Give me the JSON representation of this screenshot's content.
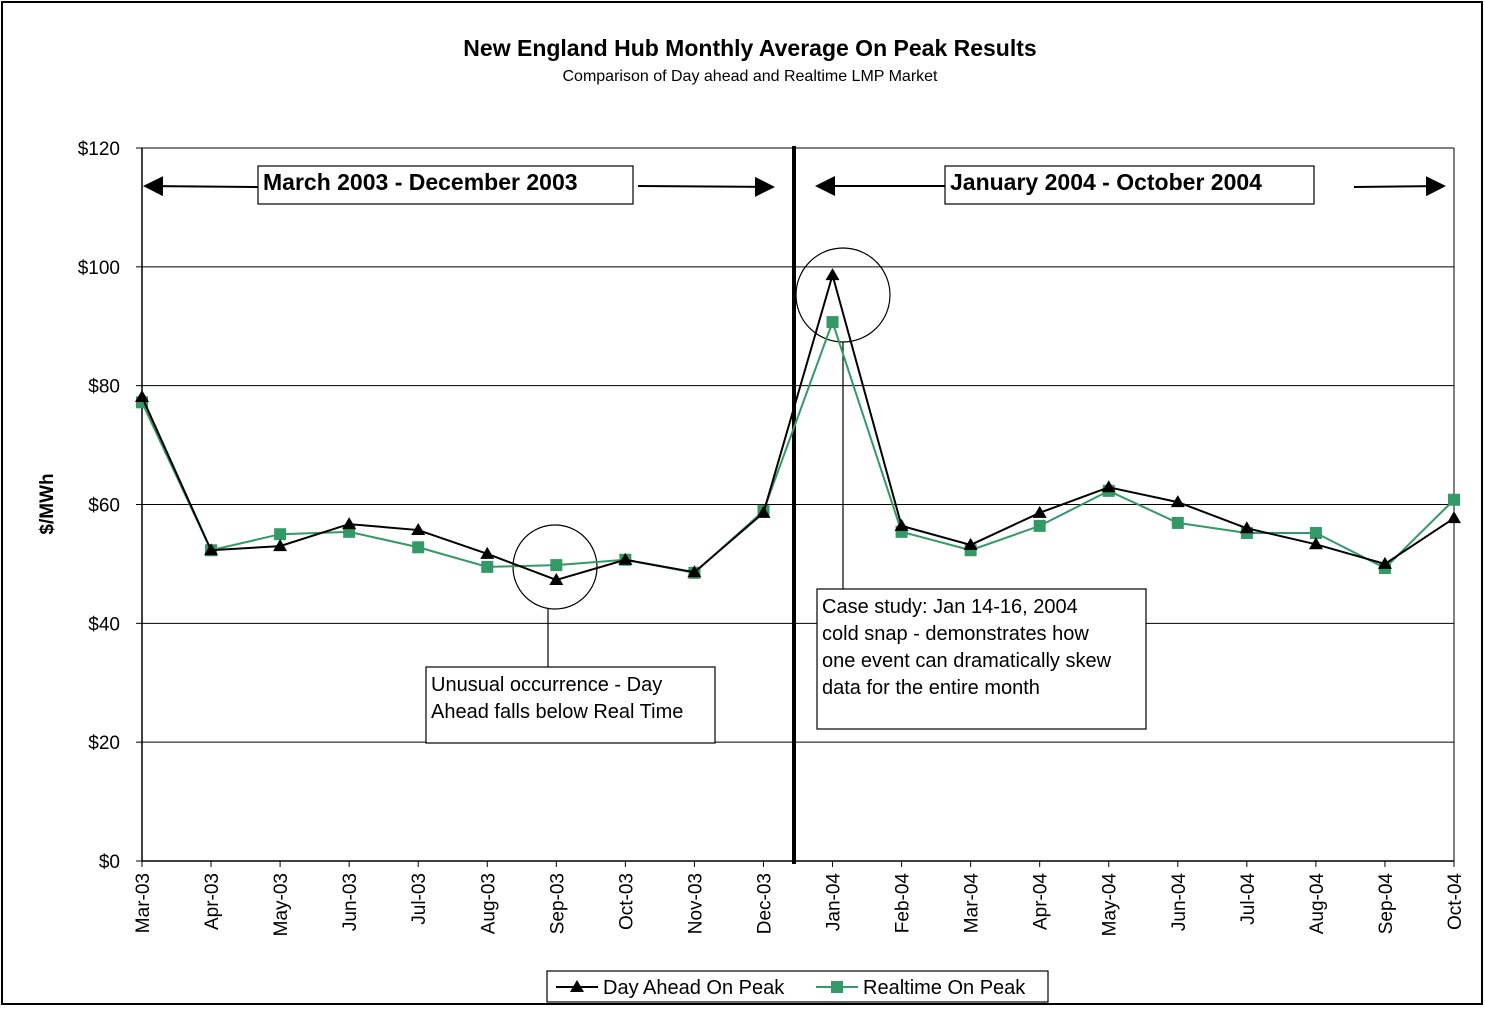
{
  "chart_data": {
    "type": "line",
    "title": "New England Hub Monthly Average On Peak Results",
    "subtitle": "Comparison of Day ahead and Realtime LMP Market",
    "y_label": "$/MWh",
    "categories": [
      "Mar-03",
      "Apr-03",
      "May-03",
      "Jun-03",
      "Jul-03",
      "Aug-03",
      "Sep-03",
      "Oct-03",
      "Nov-03",
      "Dec-03",
      "Jan-04",
      "Feb-04",
      "Mar-04",
      "Apr-04",
      "May-04",
      "Jun-04",
      "Jul-04",
      "Aug-04",
      "Sep-04",
      "Oct-04"
    ],
    "series": [
      {
        "name": "Day Ahead On Peak",
        "color": "#000000",
        "marker": "triangle",
        "values": [
          78.1,
          52.3,
          53.0,
          56.7,
          55.7,
          51.7,
          47.3,
          50.7,
          48.6,
          58.6,
          98.6,
          56.4,
          53.2,
          58.6,
          62.9,
          60.4,
          56.0,
          53.3,
          50.0,
          57.7
        ]
      },
      {
        "name": "Realtime On Peak",
        "color": "#339966",
        "marker": "square",
        "values": [
          77.2,
          52.3,
          55.0,
          55.4,
          52.8,
          49.5,
          49.8,
          50.7,
          48.5,
          58.9,
          90.7,
          55.4,
          52.3,
          56.4,
          62.3,
          56.9,
          55.2,
          55.2,
          49.3,
          60.8
        ]
      }
    ],
    "ylim": [
      0,
      120
    ],
    "yticks": [
      {
        "value": 0,
        "label": "$0"
      },
      {
        "value": 20,
        "label": "$20"
      },
      {
        "value": 40,
        "label": "$40"
      },
      {
        "value": 60,
        "label": "$60"
      },
      {
        "value": 80,
        "label": "$80"
      },
      {
        "value": 100,
        "label": "$100"
      },
      {
        "value": 120,
        "label": "$120"
      }
    ],
    "grid": true,
    "legend": "bottom",
    "annotations": [
      {
        "lines": [
          "March 2003 - December 2003"
        ]
      },
      {
        "lines": [
          "January 2004 - October 2004"
        ]
      },
      {
        "lines": [
          "Unusual occurrence - Day",
          "Ahead falls below Real Time"
        ]
      },
      {
        "lines": [
          "Case study: Jan 14-16, 2004",
          "cold snap - demonstrates how",
          "one event can dramatically skew",
          "data for the entire month"
        ]
      }
    ]
  }
}
